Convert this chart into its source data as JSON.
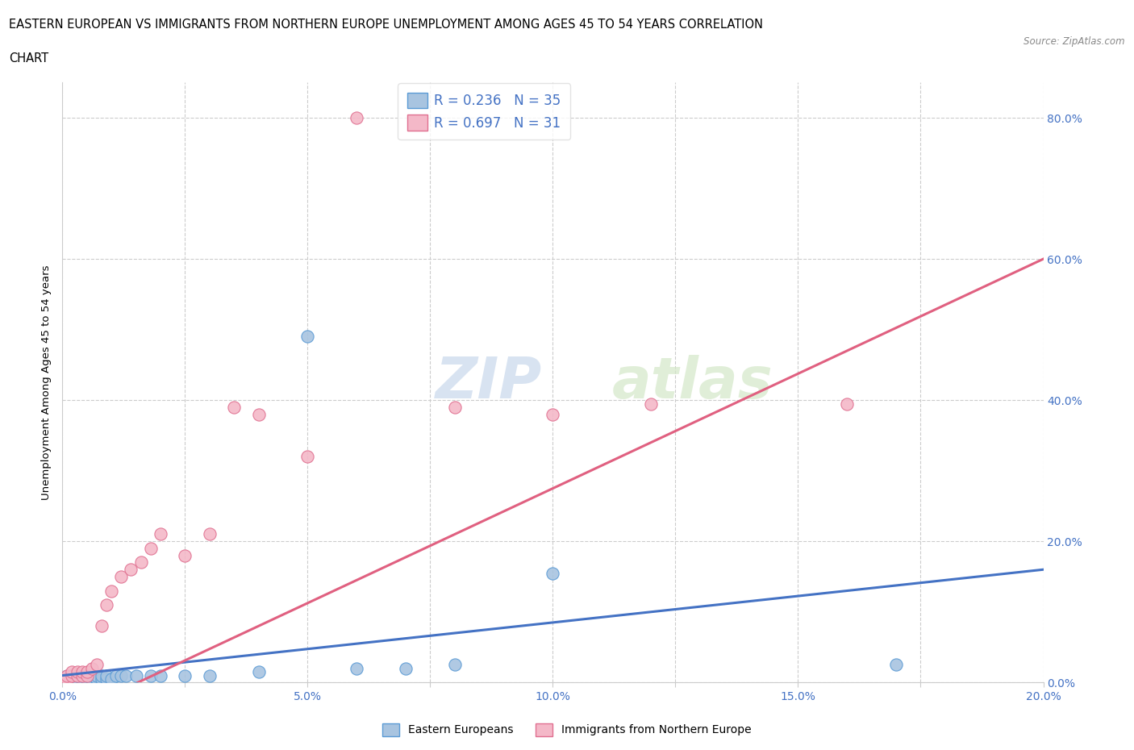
{
  "title_line1": "EASTERN EUROPEAN VS IMMIGRANTS FROM NORTHERN EUROPE UNEMPLOYMENT AMONG AGES 45 TO 54 YEARS CORRELATION",
  "title_line2": "CHART",
  "source": "Source: ZipAtlas.com",
  "ylabel": "Unemployment Among Ages 45 to 54 years",
  "xlim": [
    0.0,
    0.2
  ],
  "ylim": [
    0.0,
    0.85
  ],
  "xticks": [
    0.0,
    0.025,
    0.05,
    0.075,
    0.1,
    0.125,
    0.15,
    0.175,
    0.2
  ],
  "xticklabels": [
    "0.0%",
    "",
    "5.0%",
    "",
    "10.0%",
    "",
    "15.0%",
    "",
    "20.0%"
  ],
  "yticks": [
    0.0,
    0.2,
    0.4,
    0.6,
    0.8
  ],
  "yticklabels": [
    "0.0%",
    "20.0%",
    "40.0%",
    "60.0%",
    "80.0%"
  ],
  "blue_color": "#a8c4e0",
  "blue_edge_color": "#5b9bd5",
  "blue_line_color": "#4472c4",
  "pink_color": "#f4b8c8",
  "pink_edge_color": "#e07090",
  "pink_line_color": "#e06080",
  "blue_label": "Eastern Europeans",
  "pink_label": "Immigrants from Northern Europe",
  "blue_R": 0.236,
  "blue_N": 35,
  "pink_R": 0.697,
  "pink_N": 31,
  "legend_text_color": "#4472c4",
  "watermark_zip": "ZIP",
  "watermark_atlas": "atlas",
  "grid_color": "#cccccc",
  "background_color": "#ffffff",
  "blue_scatter_x": [
    0.0,
    0.001,
    0.001,
    0.002,
    0.002,
    0.003,
    0.003,
    0.004,
    0.004,
    0.005,
    0.005,
    0.006,
    0.006,
    0.007,
    0.007,
    0.008,
    0.008,
    0.009,
    0.009,
    0.01,
    0.011,
    0.012,
    0.013,
    0.015,
    0.018,
    0.02,
    0.025,
    0.03,
    0.04,
    0.05,
    0.06,
    0.07,
    0.08,
    0.1,
    0.17
  ],
  "blue_scatter_y": [
    0.005,
    0.005,
    0.01,
    0.005,
    0.01,
    0.005,
    0.01,
    0.005,
    0.01,
    0.005,
    0.01,
    0.005,
    0.01,
    0.005,
    0.01,
    0.005,
    0.01,
    0.005,
    0.01,
    0.005,
    0.01,
    0.01,
    0.01,
    0.01,
    0.01,
    0.01,
    0.01,
    0.01,
    0.015,
    0.49,
    0.02,
    0.02,
    0.025,
    0.155,
    0.025
  ],
  "pink_scatter_x": [
    0.0,
    0.001,
    0.001,
    0.002,
    0.002,
    0.003,
    0.003,
    0.004,
    0.004,
    0.005,
    0.005,
    0.006,
    0.007,
    0.008,
    0.009,
    0.01,
    0.012,
    0.014,
    0.016,
    0.018,
    0.02,
    0.025,
    0.03,
    0.035,
    0.04,
    0.05,
    0.06,
    0.08,
    0.1,
    0.12,
    0.16
  ],
  "pink_scatter_y": [
    0.005,
    0.005,
    0.01,
    0.01,
    0.015,
    0.01,
    0.015,
    0.01,
    0.015,
    0.01,
    0.015,
    0.02,
    0.025,
    0.08,
    0.11,
    0.13,
    0.15,
    0.16,
    0.17,
    0.19,
    0.21,
    0.18,
    0.21,
    0.39,
    0.38,
    0.32,
    0.8,
    0.39,
    0.38,
    0.395,
    0.395
  ]
}
